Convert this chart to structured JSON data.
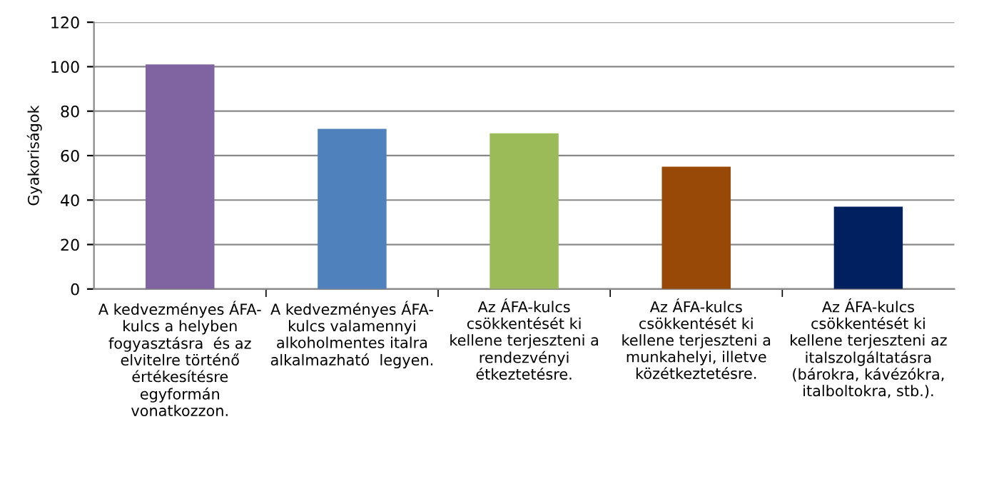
{
  "chart_data": {
    "type": "bar",
    "categories": [
      "A kedvezményes ÁFA-\nkulcs a helyben\nfogyasztásra  és az\nelvitelre történő\nértékesítésre\negyformán\nvonatkozzon.",
      "A kedvezményes ÁFA-\nkulcs valamennyi\nalkoholmentes italra\nalkalmazható  legyen.",
      "Az ÁFA-kulcs\ncsökkentését ki\nkellene terjeszteni a\nrendezvényi\nétkeztetésre.",
      "Az ÁFA-kulcs\ncsökkentését ki\nkellene terjeszteni a\nmunkahelyi, illetve\nközétkeztetésre.",
      "Az ÁFA-kulcs\ncsökkentését ki\nkellene terjeszteni az\nitalszolgáltatásra\n(bárokra, kávézókra,\nitalboltokra, stb.)."
    ],
    "values": [
      101,
      72,
      70,
      55,
      37
    ],
    "colors": [
      "#8064a2",
      "#4f81bd",
      "#9bbb59",
      "#984807",
      "#002060"
    ],
    "ylabel": "Gyakoriságok",
    "ylim": [
      0,
      120
    ],
    "yticks": [
      0,
      20,
      40,
      60,
      80,
      100,
      120
    ],
    "grid": "y"
  }
}
